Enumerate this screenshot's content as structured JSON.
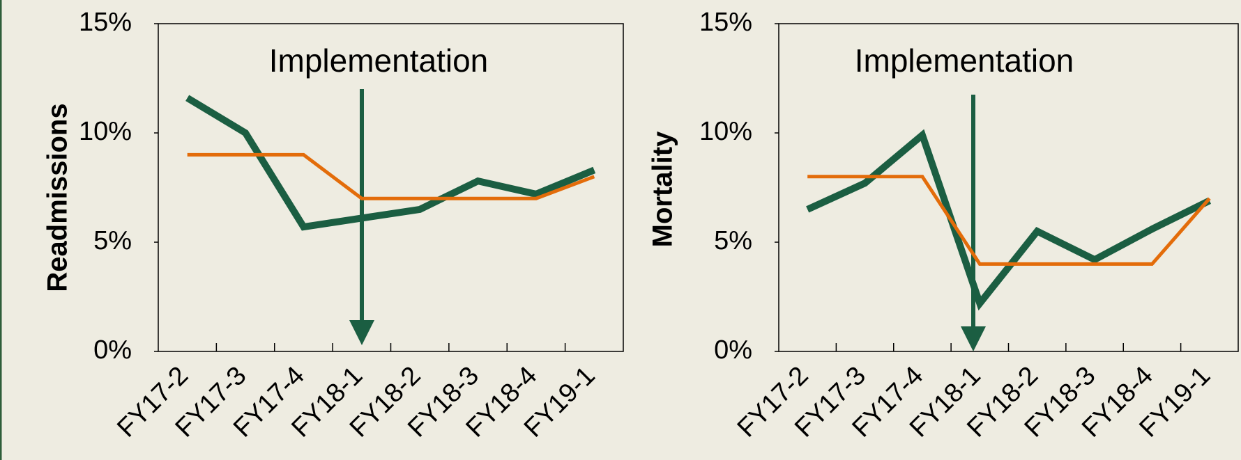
{
  "chart_data": [
    {
      "type": "line",
      "y_label": "Readmissions",
      "annotation": "Implementation",
      "categories": [
        "FY17-2",
        "FY17-3",
        "FY17-4",
        "FY18-1",
        "FY18-2",
        "FY18-3",
        "FY18-4",
        "FY19-1"
      ],
      "series": [
        {
          "color": "#1b5e42",
          "values": [
            11.6,
            10,
            5.7,
            6.1,
            6.5,
            7.8,
            7.2,
            8.3
          ]
        },
        {
          "color": "#e36c0a",
          "values": [
            9,
            9,
            9,
            7,
            7,
            7,
            7,
            8
          ]
        }
      ],
      "ylim": [
        0,
        15
      ],
      "yticks": [
        {
          "value": 0,
          "label": "0%"
        },
        {
          "value": 5,
          "label": "5%"
        },
        {
          "value": 10,
          "label": "10%"
        },
        {
          "value": 15,
          "label": "15%"
        }
      ]
    },
    {
      "type": "line",
      "y_label": "Mortality",
      "annotation": "Implementation",
      "categories": [
        "FY17-2",
        "FY17-3",
        "FY17-4",
        "FY18-1",
        "FY18-2",
        "FY18-3",
        "FY18-4",
        "FY19-1"
      ],
      "series": [
        {
          "color": "#1b5e42",
          "values": [
            6.5,
            7.7,
            9.9,
            2.2,
            5.5,
            4.2,
            5.6,
            6.9
          ]
        },
        {
          "color": "#e36c0a",
          "values": [
            8,
            8,
            8,
            4,
            4,
            4,
            4,
            7
          ]
        }
      ],
      "ylim": [
        0,
        15
      ],
      "yticks": [
        {
          "value": 0,
          "label": "0%"
        },
        {
          "value": 5,
          "label": "5%"
        },
        {
          "value": 10,
          "label": "10%"
        },
        {
          "value": 15,
          "label": "15%"
        }
      ]
    }
  ]
}
